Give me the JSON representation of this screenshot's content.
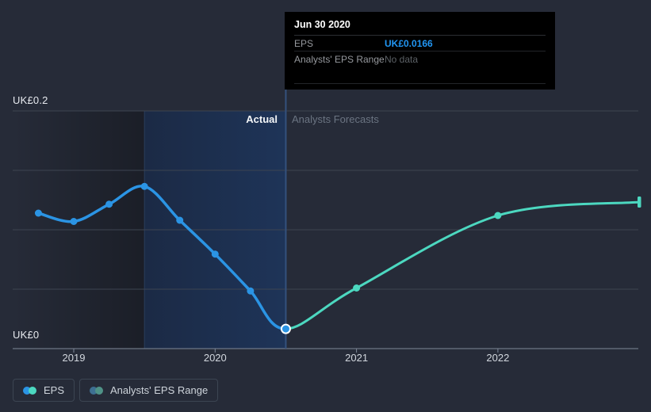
{
  "y_axis": {
    "top_label": "UK£0.2",
    "bottom_label": "UK£0"
  },
  "x_axis": {
    "ticks": [
      {
        "label": "2019",
        "t": 2019
      },
      {
        "label": "2020",
        "t": 2020
      },
      {
        "label": "2021",
        "t": 2021
      },
      {
        "label": "2022",
        "t": 2022
      }
    ]
  },
  "phase_labels": {
    "actual": "Actual",
    "forecast": "Analysts Forecasts"
  },
  "tooltip": {
    "title": "Jun 30 2020",
    "rows": [
      {
        "label": "EPS",
        "value": "UK£0.0166"
      },
      {
        "label": "Analysts' EPS Range",
        "value": "No data"
      }
    ]
  },
  "legend": {
    "items": [
      {
        "label": "EPS",
        "dot_colors": [
          "#2b94e4",
          "#4cd8c0"
        ]
      },
      {
        "label": "Analysts' EPS Range",
        "dot_colors": [
          "#3e7092",
          "#4f9287"
        ]
      }
    ]
  },
  "colors": {
    "background": "#262b38",
    "eps_actual_line": "#2b94e4",
    "eps_forecast_line": "#4cd8c0",
    "divider_line": "#34517d",
    "highlight_region_from": "#1b2a45",
    "highlight_region_to": "#1e3458",
    "gridline": "#3d4451",
    "axis_line": "#7e8898",
    "tooltip_value_blue": "#2196f3"
  },
  "chart_data": {
    "type": "line",
    "title": "EPS actual vs analysts forecasts",
    "currency_prefix": "UK£",
    "ylim": [
      0,
      0.2
    ],
    "y_gridline_values": [
      0.2,
      0.15,
      0.1,
      0.05
    ],
    "series": [
      {
        "name": "EPS (actual)",
        "color": "#2b94e4",
        "points": [
          {
            "date": "Sep 30 2018",
            "t": 2018.75,
            "value": 0.114
          },
          {
            "date": "Dec 31 2018",
            "t": 2019.0,
            "value": 0.107
          },
          {
            "date": "Mar 31 2019",
            "t": 2019.25,
            "value": 0.1215
          },
          {
            "date": "Jun 30 2019",
            "t": 2019.5,
            "value": 0.1365
          },
          {
            "date": "Sep 30 2019",
            "t": 2019.75,
            "value": 0.108
          },
          {
            "date": "Dec 31 2019",
            "t": 2020.0,
            "value": 0.0795
          },
          {
            "date": "Mar 31 2020",
            "t": 2020.25,
            "value": 0.0485
          },
          {
            "date": "Jun 30 2020",
            "t": 2020.5,
            "value": 0.0166
          }
        ]
      },
      {
        "name": "EPS (analysts forecast)",
        "color": "#4cd8c0",
        "points": [
          {
            "date": "Jun 30 2020",
            "t": 2020.5,
            "value": 0.0166
          },
          {
            "date": "Dec 31 2020",
            "t": 2021.0,
            "value": 0.051
          },
          {
            "date": "Dec 31 2021",
            "t": 2022.0,
            "value": 0.112
          },
          {
            "date": "Dec 31 2022",
            "t": 2023.0,
            "value": 0.1233
          }
        ]
      }
    ],
    "highlight_region": {
      "from_t": 2019.5,
      "to_t": 2020.5
    },
    "selected_point": {
      "date": "Jun 30 2020",
      "t": 2020.5,
      "value": 0.0166
    }
  }
}
